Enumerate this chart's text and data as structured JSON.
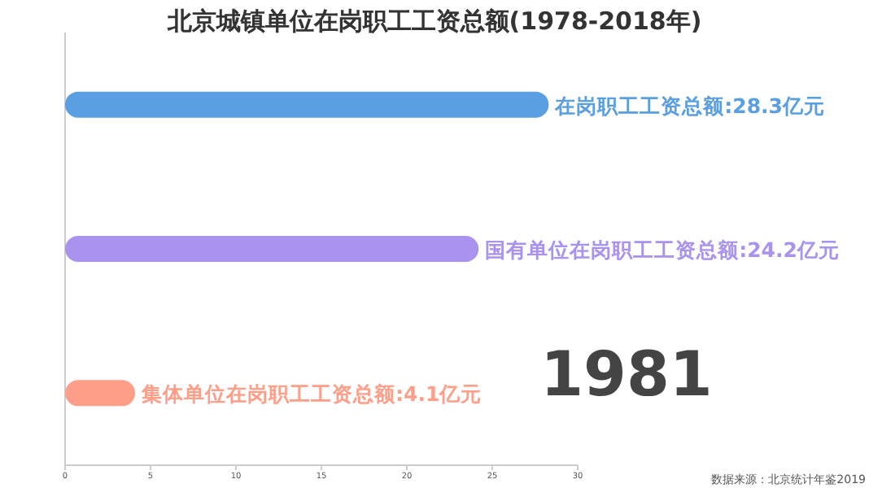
{
  "chart_data": {
    "type": "bar",
    "orientation": "horizontal",
    "title": "北京城镇单位在岗职工工资总额(1978-2018年)",
    "categories": [
      null,
      null,
      null
    ],
    "values": [
      28.3,
      24.2,
      4.1
    ],
    "colors": [
      "#5a9fe2",
      "#aa93ef",
      "#ff9f89"
    ],
    "value_labels": [
      "在岗职工工资总额:28.3亿元",
      "国有单位在岗职工工资总额:24.2亿元",
      "集体单位在岗职工工资总额:4.1亿元"
    ],
    "xlim": [
      0,
      30
    ],
    "xticks": [
      0,
      5,
      10,
      15,
      20,
      25,
      30
    ],
    "grid": false,
    "annotations": [
      "1981",
      "数据来源：北京统计年鉴2019"
    ]
  }
}
